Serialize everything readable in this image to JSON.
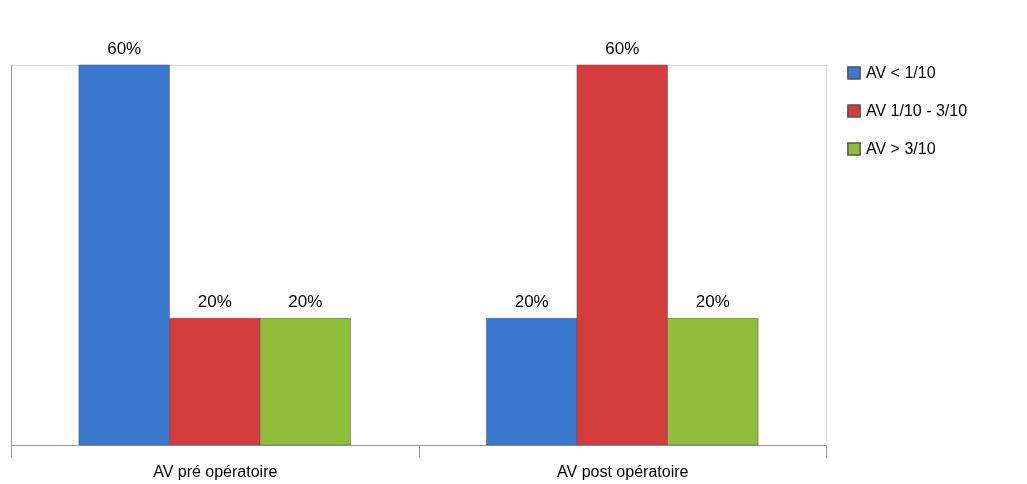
{
  "chart_data": {
    "type": "bar",
    "categories": [
      "AV pré opératoire",
      "AV post opératoire"
    ],
    "series": [
      {
        "name": "AV < 1/10",
        "color": "#3b78d0",
        "values": [
          60,
          20
        ],
        "value_labels": [
          "60%",
          "20%"
        ]
      },
      {
        "name": "AV 1/10 - 3/10",
        "color": "#d43c3c",
        "values": [
          20,
          60
        ],
        "value_labels": [
          "20%",
          "60%"
        ]
      },
      {
        "name": "AV > 3/10",
        "color": "#8fbf3a",
        "values": [
          20,
          20
        ],
        "value_labels": [
          "20%",
          "20%"
        ]
      }
    ],
    "legend": "right",
    "grid": false,
    "tick_labels": "x"
  }
}
